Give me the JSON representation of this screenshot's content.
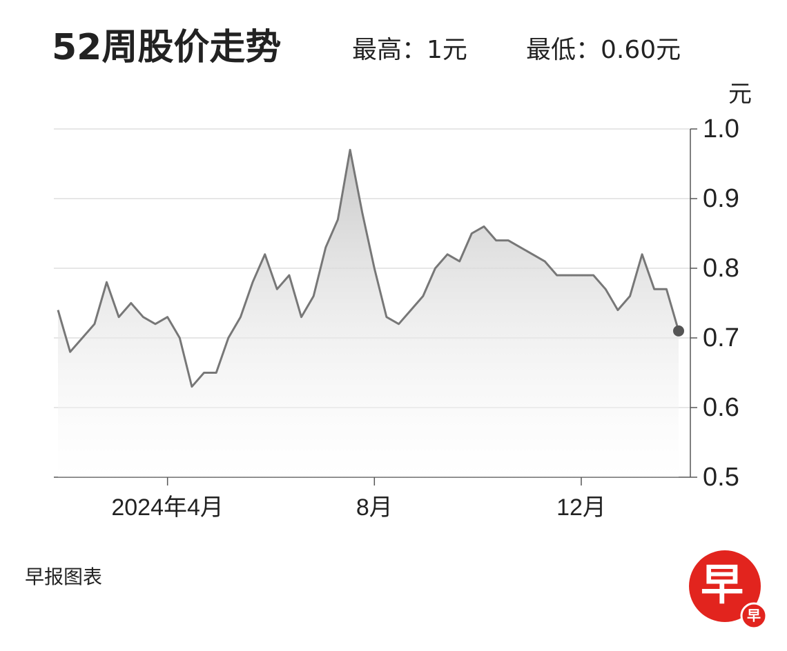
{
  "chart_data": {
    "type": "line",
    "title": "52周股价走势",
    "annotations": [
      "最高：1元",
      "最低：0.60元"
    ],
    "y_label": "元",
    "categories": [
      null,
      null,
      null,
      null,
      null,
      null,
      null,
      null,
      null,
      "2024年4月",
      null,
      null,
      null,
      null,
      null,
      null,
      null,
      null,
      null,
      null,
      null,
      null,
      null,
      null,
      null,
      null,
      "8月",
      null,
      null,
      null,
      null,
      null,
      null,
      null,
      null,
      null,
      null,
      null,
      null,
      null,
      null,
      null,
      null,
      "12月",
      null,
      null,
      null,
      null,
      null,
      null,
      null,
      null
    ],
    "series": [
      {
        "name": "股价",
        "color": "#777777",
        "values": [
          0.74,
          0.68,
          0.7,
          0.72,
          0.78,
          0.73,
          0.75,
          0.73,
          0.72,
          0.73,
          0.7,
          0.63,
          0.65,
          0.65,
          0.7,
          0.73,
          0.78,
          0.82,
          0.77,
          0.79,
          0.73,
          0.76,
          0.83,
          0.87,
          0.97,
          0.88,
          0.8,
          0.73,
          0.72,
          0.74,
          0.76,
          0.8,
          0.82,
          0.81,
          0.85,
          0.86,
          0.84,
          0.84,
          0.83,
          0.82,
          0.81,
          0.79,
          0.79,
          0.79,
          0.79,
          0.77,
          0.74,
          0.76,
          0.82,
          0.77,
          0.77,
          0.71
        ]
      }
    ],
    "ylim": [
      0.5,
      1.0
    ],
    "yticks": [
      0.5,
      0.6,
      0.7,
      0.8,
      0.9,
      {
        "value": 1,
        "label": "1.0"
      }
    ],
    "grid": true
  },
  "footer": {
    "source": "早报图表",
    "logo": [
      "早",
      "早"
    ]
  }
}
